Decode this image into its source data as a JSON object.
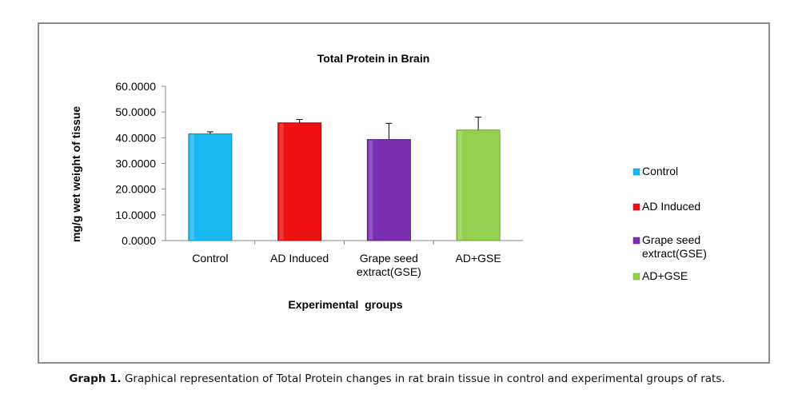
{
  "chart_data": {
    "type": "bar",
    "title": "Total Protein in Brain",
    "xlabel": "Experimental  groups",
    "ylabel": "mg/g wet weight of tissue",
    "ylim": [
      0,
      60
    ],
    "yticks": [
      "0.0000",
      "10.0000",
      "20.0000",
      "30.0000",
      "40.0000",
      "50.0000",
      "60.0000"
    ],
    "ytick_values": [
      0,
      10,
      20,
      30,
      40,
      50,
      60
    ],
    "categories": [
      "Control",
      "AD Induced",
      "Grape seed extract(GSE)",
      "AD+GSE"
    ],
    "category_lines": [
      [
        "Control"
      ],
      [
        "AD Induced"
      ],
      [
        "Grape seed",
        "extract(GSE)"
      ],
      [
        "AD+GSE"
      ]
    ],
    "values": [
      41.5,
      45.8,
      39.3,
      43.0
    ],
    "errors": [
      0.8,
      1.3,
      6.3,
      5.0
    ],
    "colors": [
      "#1ab8f0",
      "#ee1111",
      "#7a2fb0",
      "#92d050"
    ],
    "colors_dark": [
      "#0e8fbf",
      "#b00c0c",
      "#561f82",
      "#6ea534"
    ],
    "legend_position": "right",
    "legend": [
      {
        "lines": [
          "Control"
        ]
      },
      {
        "lines": [
          "AD Induced"
        ]
      },
      {
        "lines": [
          "Grape seed",
          "extract(GSE)"
        ]
      },
      {
        "lines": [
          "AD+GSE"
        ]
      }
    ],
    "grid": false
  },
  "caption": {
    "label": "Graph 1.",
    "text": " Graphical representation of Total Protein changes in rat brain tissue in control and experimental groups of rats."
  }
}
